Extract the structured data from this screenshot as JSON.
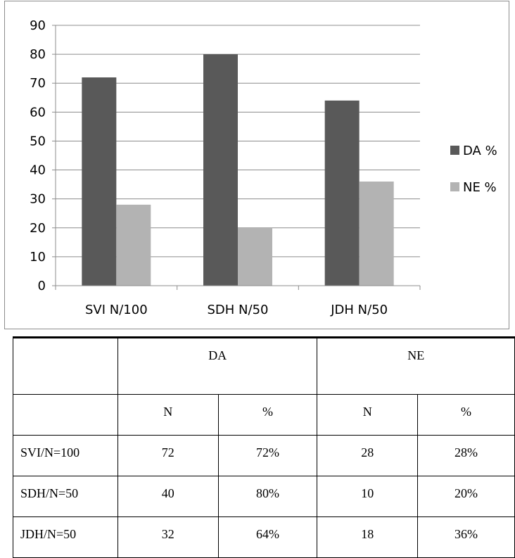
{
  "chart_data": {
    "type": "bar",
    "categories": [
      "SVI N/100",
      "SDH N/50",
      "JDH N/50"
    ],
    "series": [
      {
        "name": "DA %",
        "values": [
          72,
          80,
          64
        ],
        "color": "#595959"
      },
      {
        "name": "NE %",
        "values": [
          28,
          20,
          36
        ],
        "color": "#b3b3b3"
      }
    ],
    "ylim": [
      0,
      90
    ],
    "yticks": [
      0,
      10,
      20,
      30,
      40,
      50,
      60,
      70,
      80,
      90
    ],
    "grid": true,
    "legend": "right"
  },
  "table": {
    "header1": [
      "",
      "DA",
      "NE"
    ],
    "header2": [
      "",
      "N",
      "%",
      "N",
      "%"
    ],
    "rows": [
      [
        "SVI/N=100",
        "72",
        "72%",
        "28",
        "28%"
      ],
      [
        "SDH/N=50",
        "40",
        "80%",
        "10",
        "20%"
      ],
      [
        "JDH/N=50",
        "32",
        "64%",
        "18",
        "36%"
      ]
    ]
  }
}
